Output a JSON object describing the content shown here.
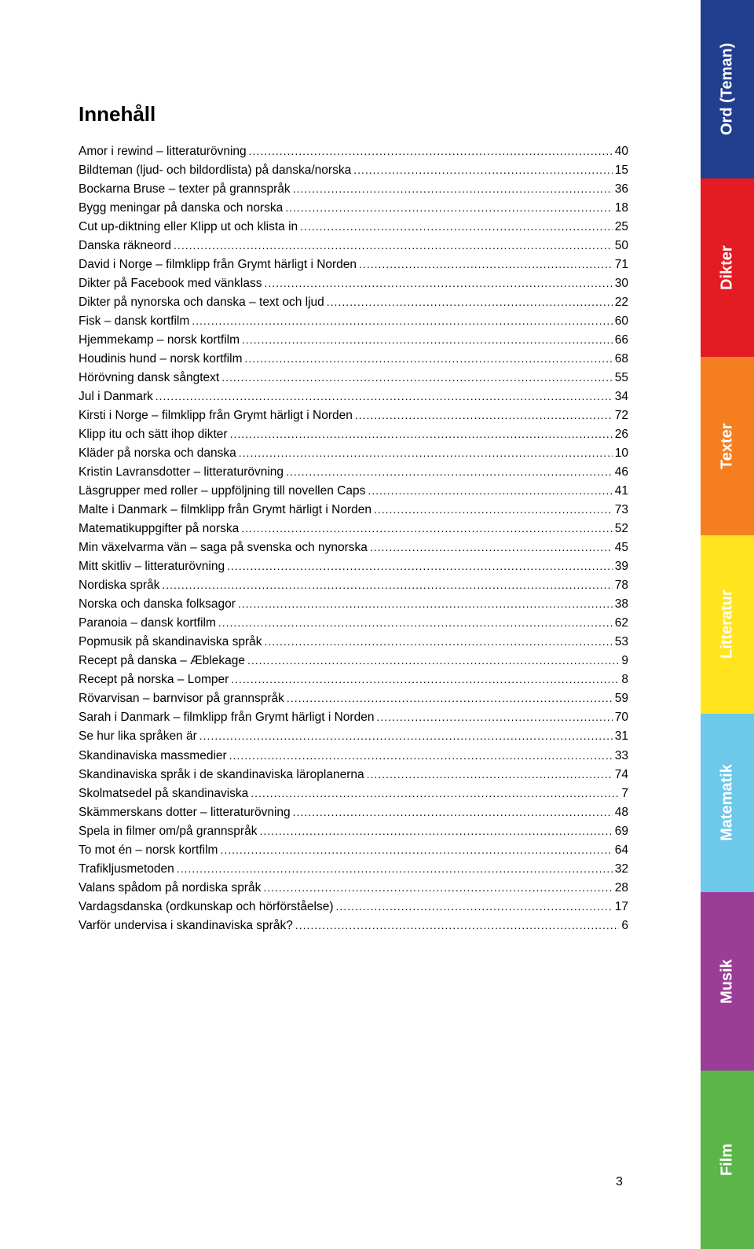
{
  "title": "Innehåll",
  "page_number": "3",
  "toc_text_color": "#000000",
  "toc_fontsize": 15.5,
  "title_fontsize": 26,
  "entries": [
    {
      "label": "Amor i rewind – litteraturövning",
      "page": "40"
    },
    {
      "label": "Bildteman (ljud- och bildordlista) på danska/norska",
      "page": "15"
    },
    {
      "label": "Bockarna Bruse – texter på grannspråk",
      "page": "36"
    },
    {
      "label": "Bygg meningar på danska och norska",
      "page": "18"
    },
    {
      "label": "Cut up-diktning eller Klipp ut och klista in",
      "page": "25"
    },
    {
      "label": "Danska räkneord",
      "page": "50"
    },
    {
      "label": "David i Norge – filmklipp från Grymt härligt i Norden",
      "page": "71"
    },
    {
      "label": "Dikter på Facebook med vänklass",
      "page": "30"
    },
    {
      "label": "Dikter på nynorska och danska – text och ljud",
      "page": "22"
    },
    {
      "label": "Fisk – dansk kortfilm",
      "page": "60"
    },
    {
      "label": "Hjemmekamp – norsk kortfilm",
      "page": "66"
    },
    {
      "label": "Houdinis hund – norsk kortfilm",
      "page": "68"
    },
    {
      "label": "Hörövning dansk sångtext",
      "page": "55"
    },
    {
      "label": "Jul i Danmark",
      "page": "34"
    },
    {
      "label": "Kirsti i Norge – filmklipp från Grymt härligt i Norden",
      "page": "72"
    },
    {
      "label": "Klipp itu och sätt ihop dikter",
      "page": "26"
    },
    {
      "label": "Kläder på norska och danska",
      "page": "10"
    },
    {
      "label": "Kristin Lavransdotter – litteraturövning",
      "page": "46"
    },
    {
      "label": "Läsgrupper med roller – uppföljning till novellen Caps",
      "page": "41"
    },
    {
      "label": "Malte i Danmark – filmklipp från Grymt härligt i Norden",
      "page": "73"
    },
    {
      "label": "Matematikuppgifter på norska",
      "page": "52"
    },
    {
      "label": "Min växelvarma vän – saga på svenska och nynorska",
      "page": "45"
    },
    {
      "label": "Mitt skitliv – litteraturövning",
      "page": "39"
    },
    {
      "label": "Nordiska språk",
      "page": "78"
    },
    {
      "label": "Norska och danska folksagor",
      "page": "38"
    },
    {
      "label": "Paranoia – dansk kortfilm",
      "page": "62"
    },
    {
      "label": "Popmusik på skandinaviska språk",
      "page": "53"
    },
    {
      "label": "Recept på danska – Æblekage",
      "page": "9"
    },
    {
      "label": "Recept på norska – Lomper",
      "page": "8"
    },
    {
      "label": "Rövarvisan – barnvisor på grannspråk",
      "page": "59"
    },
    {
      "label": "Sarah i Danmark – filmklipp från Grymt härligt i Norden",
      "page": "70"
    },
    {
      "label": "Se hur lika språken är",
      "page": "31"
    },
    {
      "label": "Skandinaviska massmedier",
      "page": "33"
    },
    {
      "label": "Skandinaviska språk i de skandinaviska läroplanerna",
      "page": "74"
    },
    {
      "label": "Skolmatsedel på skandinaviska",
      "page": "7"
    },
    {
      "label": "Skämmerskans dotter – litteraturövning",
      "page": "48"
    },
    {
      "label": "Spela in filmer om/på grannspråk",
      "page": "69"
    },
    {
      "label": "To mot én – norsk kortfilm",
      "page": "64"
    },
    {
      "label": "Trafikljusmetoden",
      "page": "32"
    },
    {
      "label": "Valans spådom på nordiska språk",
      "page": "28"
    },
    {
      "label": "Vardagsdanska (ordkunskap och hörförståelse)",
      "page": "17"
    },
    {
      "label": "Varför undervisa i skandinaviska språk?",
      "page": "6"
    }
  ],
  "tabs": [
    {
      "label": "Ord (Teman)",
      "color": "#223f8f"
    },
    {
      "label": "Dikter",
      "color": "#e41b23"
    },
    {
      "label": "Texter",
      "color": "#f57f20"
    },
    {
      "label": "Litteratur",
      "color": "#ffe41e",
      "text_color": "#ffffff"
    },
    {
      "label": "Matematik",
      "color": "#6dc8ea"
    },
    {
      "label": "Musik",
      "color": "#9b3d97"
    },
    {
      "label": "Film",
      "color": "#5bb548"
    }
  ]
}
